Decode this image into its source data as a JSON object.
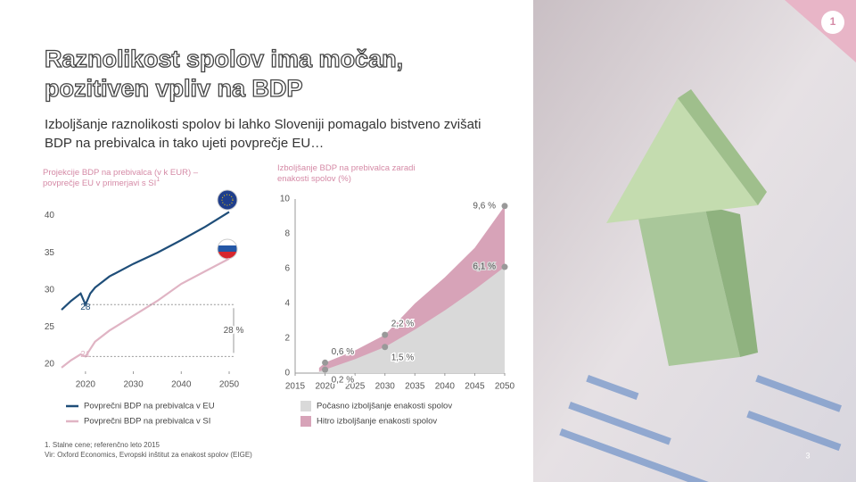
{
  "title_lines": [
    "Raznolikost spolov ima močan,",
    "pozitiven vpliv na BDP"
  ],
  "subtitle_lines": [
    "Izboljšanje raznolikosti spolov bi lahko Sloveniji pomagalo bistveno zvišati",
    "BDP na prebivalca in tako ujeti povprečje EU…"
  ],
  "badge": "1",
  "page_number": "3",
  "footnotes": [
    "1. Stalne cene; referenčno leto 2015",
    "Vir: Oxford Economics, Evropski inštitut za enakost spolov (EIGE)"
  ],
  "chart_data": [
    {
      "type": "line",
      "title": "Projekcije BDP na prebivalca (v k EUR) – povprečje EU v primerjavi s SI",
      "title_note": "1",
      "x": [
        2015,
        2017,
        2019,
        2020,
        2021,
        2022,
        2025,
        2030,
        2035,
        2040,
        2045,
        2050
      ],
      "series": [
        {
          "name": "Povprečni BDP na prebivalca v EU",
          "color": "#1f4e79",
          "values": [
            27.3,
            28.5,
            29.5,
            28,
            29.5,
            30.3,
            31.8,
            33.5,
            35,
            36.7,
            38.5,
            40.5
          ]
        },
        {
          "name": "Povprečni BDP na prebivalca v SI",
          "color": "#e0b4c4",
          "values": [
            19.5,
            20.5,
            21.3,
            21,
            22,
            23,
            24.5,
            26.5,
            28.5,
            30.8,
            32.5,
            34.2
          ]
        }
      ],
      "annotations": [
        "28",
        "21",
        "28 %"
      ],
      "xlim": [
        2015,
        2050
      ],
      "xticks": [
        2020,
        2030,
        2040,
        2050
      ],
      "ylim": [
        19,
        42
      ],
      "yticks": [
        20,
        25,
        30,
        35,
        40
      ],
      "grid": false
    },
    {
      "type": "area",
      "title": "Izboljšanje BDP na prebivalca zaradi enakosti spolov (%)",
      "x": [
        2019,
        2020,
        2025,
        2030,
        2035,
        2040,
        2045,
        2050
      ],
      "series": [
        {
          "name": "Hitro izboljšanje enakosti spolov",
          "color": "#d7a3b8",
          "values": [
            0.3,
            0.6,
            1.3,
            2.2,
            4,
            5.5,
            7.2,
            9.6
          ],
          "value_labels": [
            null,
            "0,6 %",
            null,
            "2,2 %",
            null,
            null,
            null,
            "9,6 %"
          ]
        },
        {
          "name": "Počasno izboljšanje enakosti spolov",
          "color": "#d9d9d9",
          "values": [
            0.1,
            0.2,
            0.8,
            1.5,
            2.5,
            3.6,
            4.8,
            6.1
          ],
          "value_labels": [
            null,
            "0,2 %",
            null,
            "1,5 %",
            null,
            null,
            null,
            "6,1 %"
          ]
        }
      ],
      "xlim": [
        2015,
        2050
      ],
      "xticks": [
        2015,
        2020,
        2025,
        2030,
        2035,
        2040,
        2045,
        2050
      ],
      "ylim": [
        0,
        10
      ],
      "yticks": [
        0,
        2,
        4,
        6,
        8,
        10
      ],
      "grid": false
    }
  ]
}
